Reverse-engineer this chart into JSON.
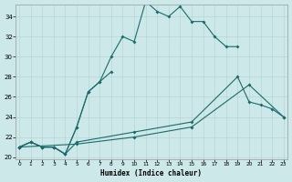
{
  "background_color": "#cce8e8",
  "grid_color": "#b8d4d4",
  "line_color": "#1a6b6b",
  "xlim": [
    -0.3,
    23.3
  ],
  "ylim": [
    19.8,
    35.2
  ],
  "xticks": [
    0,
    1,
    2,
    3,
    4,
    5,
    6,
    7,
    8,
    9,
    10,
    11,
    12,
    13,
    14,
    15,
    16,
    17,
    18,
    19,
    20,
    21,
    22,
    23
  ],
  "yticks": [
    20,
    22,
    24,
    26,
    28,
    30,
    32,
    34
  ],
  "xlabel": "Humidex (Indice chaleur)",
  "line1_x": [
    0,
    1,
    2,
    3,
    4,
    5,
    6,
    7,
    8,
    9,
    10,
    11,
    12,
    13,
    14,
    15,
    16,
    17,
    18,
    19
  ],
  "line1_y": [
    21.0,
    21.5,
    21.0,
    21.0,
    20.3,
    23.0,
    26.5,
    27.5,
    30.0,
    32.0,
    31.5,
    35.5,
    34.5,
    34.0,
    35.0,
    33.5,
    33.5,
    32.0,
    31.0,
    31.0
  ],
  "line2_x": [
    0,
    1,
    2,
    3,
    4,
    5,
    6,
    7,
    8
  ],
  "line2_y": [
    21.0,
    21.5,
    21.0,
    21.0,
    20.3,
    23.0,
    26.5,
    27.5,
    28.5
  ],
  "line3_x": [
    0,
    1,
    2,
    3,
    4,
    5,
    10,
    15,
    19,
    20,
    21,
    22,
    23
  ],
  "line3_y": [
    21.0,
    21.5,
    21.0,
    21.0,
    20.3,
    21.5,
    22.5,
    23.5,
    28.0,
    25.5,
    25.2,
    24.8,
    24.0
  ],
  "line4_x": [
    0,
    5,
    10,
    15,
    20,
    23
  ],
  "line4_y": [
    21.0,
    21.3,
    22.0,
    23.0,
    27.2,
    24.0
  ]
}
